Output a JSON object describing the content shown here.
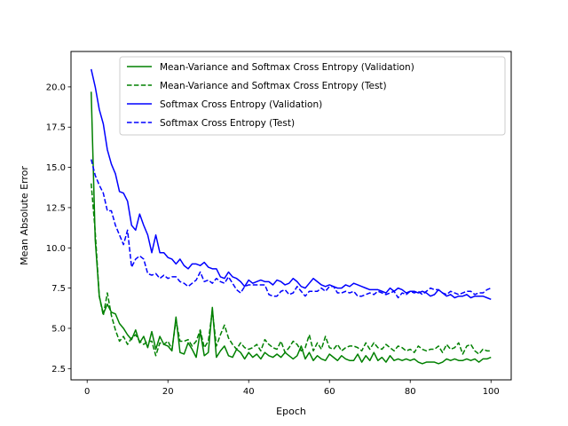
{
  "chart_data": {
    "type": "line",
    "title": "",
    "xlabel": "Epoch",
    "ylabel": "Mean Absolute Error",
    "xlim": [
      -4,
      105
    ],
    "ylim": [
      1.8,
      22.2
    ],
    "xticks": [
      0,
      20,
      40,
      60,
      80,
      100
    ],
    "yticks": [
      2.5,
      5.0,
      7.5,
      10.0,
      12.5,
      15.0,
      17.5,
      20.0
    ],
    "ytick_labels": [
      "2.5",
      "5.0",
      "7.5",
      "10.0",
      "12.5",
      "15.0",
      "17.5",
      "20.0"
    ],
    "grid": false,
    "legend_position": "top-right",
    "series": [
      {
        "name": "Mean-Variance and Softmax Cross Entropy (Validation)",
        "color": "#008000",
        "dash": "solid",
        "x": [
          1,
          2,
          3,
          4,
          5,
          6,
          7,
          8,
          9,
          10,
          11,
          12,
          13,
          14,
          15,
          16,
          17,
          18,
          19,
          20,
          21,
          22,
          23,
          24,
          25,
          26,
          27,
          28,
          29,
          30,
          31,
          32,
          33,
          34,
          35,
          36,
          37,
          38,
          39,
          40,
          41,
          42,
          43,
          44,
          45,
          46,
          47,
          48,
          49,
          50,
          51,
          52,
          53,
          54,
          55,
          56,
          57,
          58,
          59,
          60,
          61,
          62,
          63,
          64,
          65,
          66,
          67,
          68,
          69,
          70,
          71,
          72,
          73,
          74,
          75,
          76,
          77,
          78,
          79,
          80,
          81,
          82,
          83,
          84,
          85,
          86,
          87,
          88,
          89,
          90,
          91,
          92,
          93,
          94,
          95,
          96,
          97,
          98,
          99,
          100
        ],
        "y": [
          19.7,
          10.5,
          7.0,
          5.9,
          6.5,
          6.0,
          5.9,
          5.3,
          5.0,
          4.6,
          4.3,
          4.9,
          4.1,
          4.5,
          3.8,
          4.8,
          3.7,
          4.5,
          4.0,
          3.9,
          3.6,
          5.7,
          3.5,
          3.4,
          4.1,
          3.7,
          3.2,
          4.8,
          3.3,
          3.5,
          6.3,
          3.2,
          3.6,
          3.9,
          3.3,
          3.2,
          3.7,
          3.5,
          3.1,
          3.5,
          3.2,
          3.4,
          3.1,
          3.5,
          3.3,
          3.2,
          3.4,
          3.2,
          3.5,
          3.3,
          3.1,
          3.3,
          3.9,
          3.1,
          3.5,
          3.0,
          3.3,
          3.1,
          3.0,
          3.4,
          3.2,
          3.0,
          3.3,
          3.1,
          3.0,
          3.0,
          3.4,
          2.9,
          3.3,
          3.0,
          3.5,
          3.0,
          3.2,
          2.9,
          3.3,
          3.0,
          3.1,
          3.0,
          3.1,
          3.0,
          3.1,
          2.9,
          2.8,
          2.9,
          2.9,
          2.9,
          2.8,
          2.9,
          3.1,
          3.0,
          3.1,
          3.0,
          3.0,
          3.1,
          3.0,
          3.1,
          2.9,
          3.1,
          3.1,
          3.2
        ]
      },
      {
        "name": "Mean-Variance and Softmax Cross Entropy (Test)",
        "color": "#008000",
        "dash": "dashed",
        "x": [
          1,
          2,
          3,
          4,
          5,
          6,
          7,
          8,
          9,
          10,
          11,
          12,
          13,
          14,
          15,
          16,
          17,
          18,
          19,
          20,
          21,
          22,
          23,
          24,
          25,
          26,
          27,
          28,
          29,
          30,
          31,
          32,
          33,
          34,
          35,
          36,
          37,
          38,
          39,
          40,
          41,
          42,
          43,
          44,
          45,
          46,
          47,
          48,
          49,
          50,
          51,
          52,
          53,
          54,
          55,
          56,
          57,
          58,
          59,
          60,
          61,
          62,
          63,
          64,
          65,
          66,
          67,
          68,
          69,
          70,
          71,
          72,
          73,
          74,
          75,
          76,
          77,
          78,
          79,
          80,
          81,
          82,
          83,
          84,
          85,
          86,
          87,
          88,
          89,
          90,
          91,
          92,
          93,
          94,
          95,
          96,
          97,
          98,
          99,
          100
        ],
        "y": [
          14.0,
          11.0,
          7.0,
          5.8,
          7.2,
          5.8,
          4.9,
          4.2,
          4.5,
          4.0,
          4.4,
          4.6,
          4.2,
          4.0,
          4.2,
          4.2,
          3.3,
          4.1,
          4.0,
          4.2,
          3.7,
          5.5,
          4.2,
          4.2,
          4.3,
          3.9,
          4.2,
          4.9,
          3.8,
          4.2,
          6.1,
          3.9,
          4.6,
          5.2,
          4.4,
          4.0,
          3.7,
          4.1,
          3.8,
          3.7,
          3.8,
          4.0,
          3.6,
          4.3,
          4.0,
          3.8,
          3.7,
          4.2,
          3.5,
          3.8,
          4.2,
          4.0,
          3.6,
          3.8,
          4.6,
          3.6,
          4.1,
          3.7,
          4.5,
          3.8,
          3.7,
          4.0,
          3.6,
          3.8,
          3.9,
          3.9,
          3.8,
          3.6,
          4.1,
          3.7,
          4.1,
          3.8,
          3.7,
          4.0,
          3.8,
          3.6,
          3.9,
          3.8,
          3.6,
          3.7,
          3.5,
          3.9,
          3.7,
          3.6,
          3.7,
          3.7,
          3.9,
          3.5,
          4.0,
          3.7,
          3.8,
          4.1,
          3.4,
          3.9,
          4.0,
          3.6,
          3.4,
          3.7,
          3.6,
          3.6
        ]
      },
      {
        "name": "Softmax Cross Entropy (Validation)",
        "color": "#0000ff",
        "dash": "solid",
        "x": [
          1,
          2,
          3,
          4,
          5,
          6,
          7,
          8,
          9,
          10,
          11,
          12,
          13,
          14,
          15,
          16,
          17,
          18,
          19,
          20,
          21,
          22,
          23,
          24,
          25,
          26,
          27,
          28,
          29,
          30,
          31,
          32,
          33,
          34,
          35,
          36,
          37,
          38,
          39,
          40,
          41,
          42,
          43,
          44,
          45,
          46,
          47,
          48,
          49,
          50,
          51,
          52,
          53,
          54,
          55,
          56,
          57,
          58,
          59,
          60,
          61,
          62,
          63,
          64,
          65,
          66,
          67,
          68,
          69,
          70,
          71,
          72,
          73,
          74,
          75,
          76,
          77,
          78,
          79,
          80,
          81,
          82,
          83,
          84,
          85,
          86,
          87,
          88,
          89,
          90,
          91,
          92,
          93,
          94,
          95,
          96,
          97,
          98,
          99,
          100
        ],
        "y": [
          21.1,
          20.0,
          18.6,
          17.7,
          16.1,
          15.2,
          14.6,
          13.5,
          13.4,
          12.9,
          11.4,
          11.1,
          12.1,
          11.4,
          10.8,
          9.7,
          10.8,
          9.7,
          9.7,
          9.4,
          9.3,
          9.0,
          9.3,
          8.9,
          8.7,
          9.0,
          9.0,
          8.9,
          9.1,
          8.8,
          8.7,
          8.7,
          8.2,
          8.1,
          8.5,
          8.2,
          8.1,
          7.9,
          7.6,
          8.0,
          7.8,
          7.9,
          8.0,
          7.9,
          7.9,
          7.7,
          8.0,
          7.9,
          7.7,
          7.8,
          8.1,
          7.9,
          7.6,
          7.5,
          7.8,
          8.1,
          7.9,
          7.7,
          7.6,
          7.7,
          7.6,
          7.5,
          7.5,
          7.7,
          7.6,
          7.8,
          7.7,
          7.6,
          7.5,
          7.4,
          7.4,
          7.4,
          7.3,
          7.2,
          7.5,
          7.3,
          7.5,
          7.4,
          7.2,
          7.3,
          7.3,
          7.2,
          7.3,
          7.2,
          7.0,
          7.1,
          7.4,
          7.2,
          7.0,
          7.1,
          6.9,
          7.0,
          7.0,
          7.1,
          6.9,
          7.0,
          7.0,
          7.0,
          6.9,
          6.8
        ]
      },
      {
        "name": "Softmax Cross Entropy (Test)",
        "color": "#0000ff",
        "dash": "dashed",
        "x": [
          1,
          2,
          3,
          4,
          5,
          6,
          7,
          8,
          9,
          10,
          11,
          12,
          13,
          14,
          15,
          16,
          17,
          18,
          19,
          20,
          21,
          22,
          23,
          24,
          25,
          26,
          27,
          28,
          29,
          30,
          31,
          32,
          33,
          34,
          35,
          36,
          37,
          38,
          39,
          40,
          41,
          42,
          43,
          44,
          45,
          46,
          47,
          48,
          49,
          50,
          51,
          52,
          53,
          54,
          55,
          56,
          57,
          58,
          59,
          60,
          61,
          62,
          63,
          64,
          65,
          66,
          67,
          68,
          69,
          70,
          71,
          72,
          73,
          74,
          75,
          76,
          77,
          78,
          79,
          80,
          81,
          82,
          83,
          84,
          85,
          86,
          87,
          88,
          89,
          90,
          91,
          92,
          93,
          94,
          95,
          96,
          97,
          98,
          99,
          100
        ],
        "y": [
          15.5,
          14.5,
          13.9,
          13.4,
          12.3,
          12.3,
          11.4,
          10.8,
          10.2,
          11.1,
          8.8,
          9.3,
          9.5,
          9.3,
          8.4,
          8.3,
          8.4,
          8.1,
          8.3,
          8.1,
          8.2,
          8.2,
          7.9,
          7.8,
          7.6,
          7.8,
          8.0,
          8.5,
          7.9,
          8.0,
          7.8,
          8.1,
          7.9,
          7.8,
          8.2,
          7.8,
          7.4,
          7.2,
          7.6,
          7.7,
          7.7,
          7.7,
          7.7,
          7.7,
          7.1,
          7.0,
          7.0,
          7.3,
          7.4,
          7.1,
          7.2,
          7.6,
          7.3,
          7.0,
          7.3,
          7.3,
          7.3,
          7.5,
          7.3,
          7.6,
          7.6,
          7.2,
          7.2,
          7.3,
          7.2,
          7.3,
          7.0,
          7.0,
          7.1,
          7.2,
          7.1,
          7.3,
          7.2,
          7.1,
          7.2,
          7.3,
          6.9,
          7.2,
          7.1,
          7.3,
          7.2,
          7.3,
          7.1,
          7.3,
          7.5,
          7.4,
          7.4,
          7.2,
          7.1,
          7.3,
          7.2,
          7.1,
          7.2,
          7.3,
          7.3,
          7.1,
          7.2,
          7.2,
          7.4,
          7.5
        ]
      }
    ]
  }
}
